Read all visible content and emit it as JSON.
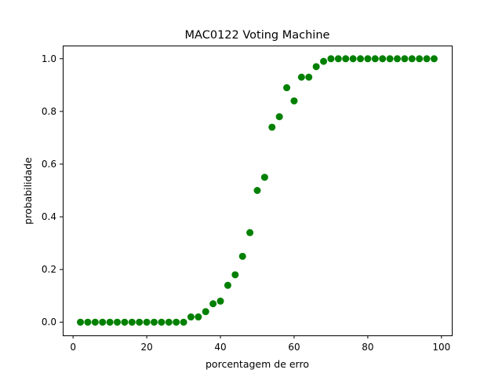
{
  "chart_data": {
    "type": "scatter",
    "title": "MAC0122 Voting Machine",
    "xlabel": "porcentagem de erro",
    "ylabel": "probabilidade",
    "xlim": [
      -2.8,
      102.8
    ],
    "ylim": [
      -0.05,
      1.05
    ],
    "xticks": [
      0,
      20,
      40,
      60,
      80,
      100
    ],
    "xtick_labels": [
      "0",
      "20",
      "40",
      "60",
      "80",
      "100"
    ],
    "yticks": [
      0.0,
      0.2,
      0.4,
      0.6,
      0.8,
      1.0
    ],
    "ytick_labels": [
      "0.0",
      "0.2",
      "0.4",
      "0.6",
      "0.8",
      "1.0"
    ],
    "grid": false,
    "marker_color": "#008000",
    "series": [
      {
        "x": [
          2,
          4,
          6,
          8,
          10,
          12,
          14,
          16,
          18,
          20,
          22,
          24,
          26,
          28,
          30,
          32,
          34,
          36,
          38,
          40,
          42,
          44,
          46,
          48,
          50,
          52,
          54,
          56,
          58,
          60,
          62,
          64,
          66,
          68,
          70,
          72,
          74,
          76,
          78,
          80,
          82,
          84,
          86,
          88,
          90,
          92,
          94,
          96,
          98
        ],
        "y": [
          0.0,
          0.0,
          0.0,
          0.0,
          0.0,
          0.0,
          0.0,
          0.0,
          0.0,
          0.0,
          0.0,
          0.0,
          0.0,
          0.0,
          0.0,
          0.02,
          0.02,
          0.04,
          0.07,
          0.08,
          0.14,
          0.18,
          0.25,
          0.34,
          0.5,
          0.55,
          0.74,
          0.78,
          0.89,
          0.84,
          0.93,
          0.93,
          0.97,
          0.99,
          1.0,
          1.0,
          1.0,
          1.0,
          1.0,
          1.0,
          1.0,
          1.0,
          1.0,
          1.0,
          1.0,
          1.0,
          1.0,
          1.0,
          1.0
        ]
      }
    ]
  }
}
